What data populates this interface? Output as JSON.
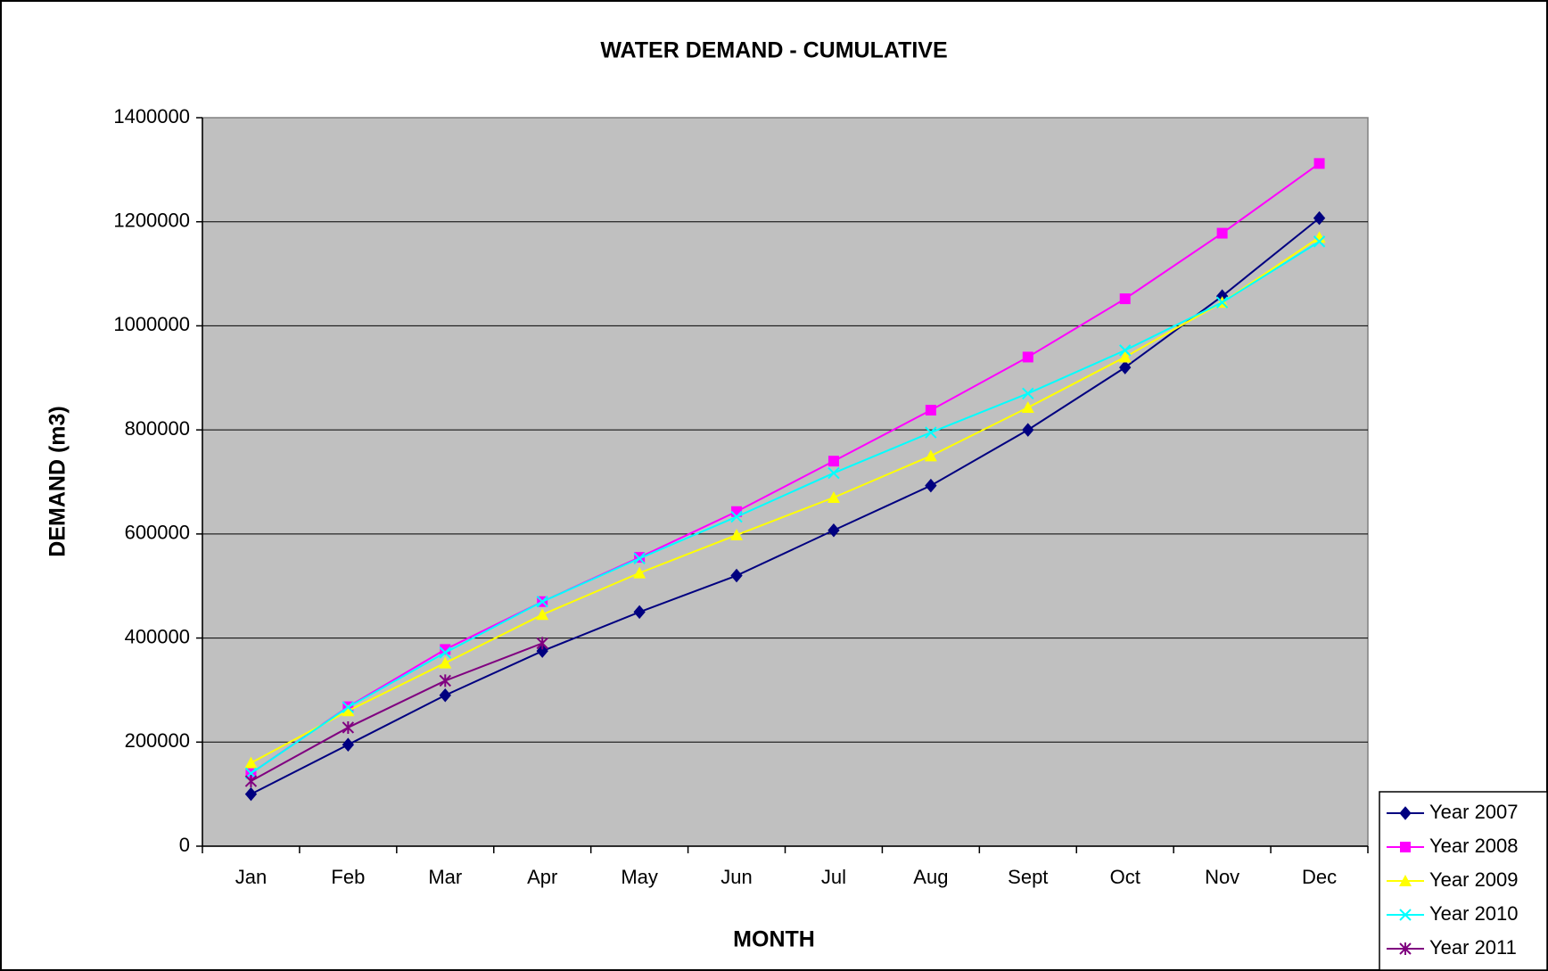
{
  "chart_data": {
    "type": "line",
    "title": "WATER DEMAND - CUMULATIVE",
    "x_label": "MONTH",
    "y_label": "DEMAND (m3)",
    "categories": [
      "Jan",
      "Feb",
      "Mar",
      "Apr",
      "May",
      "Jun",
      "Jul",
      "Aug",
      "Sept",
      "Oct",
      "Nov",
      "Dec"
    ],
    "series": [
      {
        "name": "Year 2007",
        "color": "#000080",
        "marker": "diamond",
        "values": [
          100000,
          195000,
          290000,
          375000,
          450000,
          520000,
          607000,
          693000,
          800000,
          920000,
          1057000,
          1207000
        ]
      },
      {
        "name": "Year 2008",
        "color": "#ff00ff",
        "marker": "square",
        "values": [
          140000,
          268000,
          378000,
          470000,
          555000,
          643000,
          740000,
          838000,
          940000,
          1052000,
          1178000,
          1312000
        ]
      },
      {
        "name": "Year 2009",
        "color": "#ffff00",
        "marker": "triangle",
        "values": [
          160000,
          260000,
          352000,
          445000,
          525000,
          598000,
          670000,
          750000,
          843000,
          940000,
          1045000,
          1170000
        ]
      },
      {
        "name": "Year 2010",
        "color": "#00ffff",
        "marker": "x",
        "values": [
          140000,
          267000,
          372000,
          470000,
          553000,
          633000,
          717000,
          795000,
          870000,
          953000,
          1045000,
          1162000
        ]
      },
      {
        "name": "Year 2011",
        "color": "#800080",
        "marker": "star",
        "values": [
          125000,
          228000,
          318000,
          390000,
          null,
          null,
          null,
          null,
          null,
          null,
          null,
          null
        ]
      }
    ],
    "ylim": [
      0,
      1400000
    ],
    "yticks": [
      0,
      200000,
      400000,
      600000,
      800000,
      1000000,
      1200000,
      1400000
    ],
    "grid": true,
    "plot_background": "#c0c0c0",
    "legend": "bottom-right"
  }
}
